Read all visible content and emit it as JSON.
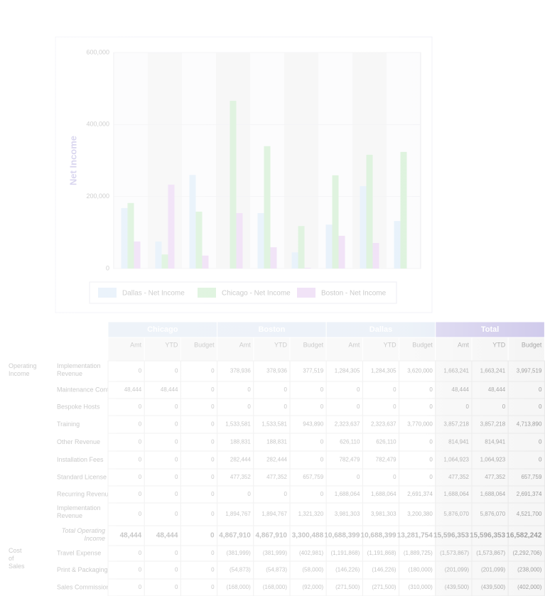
{
  "chart_data": {
    "type": "bar",
    "y_label": "Net Income",
    "categories": [
      null,
      null,
      null,
      null,
      null,
      null,
      null,
      null,
      null
    ],
    "series": [
      {
        "name": "Dallas - Net Income",
        "color": "#b9d7f2",
        "values": [
          168000,
          75000,
          260000,
          0,
          154000,
          45000,
          122000,
          229000,
          132000
        ]
      },
      {
        "name": "Chicago - Net Income",
        "color": "#9ad99a",
        "values": [
          182000,
          39000,
          158000,
          466000,
          340000,
          118000,
          259000,
          316000,
          324000
        ]
      },
      {
        "name": "Boston - Net Income",
        "color": "#d3a6e6",
        "values": [
          75000,
          233000,
          36000,
          154000,
          59000,
          2000,
          91000,
          71000,
          0
        ]
      }
    ],
    "ylim": [
      0,
      600000
    ],
    "yticks": [
      0,
      {
        "value": 200000,
        "label": "200,000"
      },
      {
        "value": 400000,
        "label": "400,000"
      },
      {
        "value": 600000,
        "label": "600,000"
      }
    ],
    "legend": "bottom"
  },
  "table": {
    "groups": [
      "Chicago",
      "Boston",
      "Dallas",
      "Total"
    ],
    "columns": [
      "Amt",
      "YTD",
      "Budget"
    ],
    "rows": [
      {
        "section": "Operating Income",
        "label": "Implementation Revenue",
        "values": [
          "0",
          "0",
          "0",
          "378,936",
          "378,936",
          "377,519",
          "1,284,305",
          "1,284,305",
          "3,620,000",
          "1,663,241",
          "1,663,241",
          "3,997,519"
        ]
      },
      {
        "label": "Maintenance Contracts",
        "values": [
          "48,444",
          "48,444",
          "0",
          "0",
          "0",
          "0",
          "0",
          "0",
          "0",
          "48,444",
          "48,444",
          "0"
        ]
      },
      {
        "label": "Bespoke Hosts",
        "values": [
          "0",
          "0",
          "0",
          "0",
          "0",
          "0",
          "0",
          "0",
          "0",
          "0",
          "0",
          "0"
        ]
      },
      {
        "label": "Training",
        "values": [
          "0",
          "0",
          "0",
          "1,533,581",
          "1,533,581",
          "943,890",
          "2,323,637",
          "2,323,637",
          "3,770,000",
          "3,857,218",
          "3,857,218",
          "4,713,890"
        ]
      },
      {
        "label": "Other Revenue",
        "values": [
          "0",
          "0",
          "0",
          "188,831",
          "188,831",
          "0",
          "626,110",
          "626,110",
          "0",
          "814,941",
          "814,941",
          "0"
        ]
      },
      {
        "label": "Installation Fees",
        "values": [
          "0",
          "0",
          "0",
          "282,444",
          "282,444",
          "0",
          "782,479",
          "782,479",
          "0",
          "1,064,923",
          "1,064,923",
          "0"
        ]
      },
      {
        "label": "Standard License",
        "values": [
          "0",
          "0",
          "0",
          "477,352",
          "477,352",
          "657,759",
          "0",
          "0",
          "0",
          "477,352",
          "477,352",
          "657,759"
        ]
      },
      {
        "label": "Recurring Revenue",
        "values": [
          "0",
          "0",
          "0",
          "0",
          "0",
          "0",
          "1,688,064",
          "1,688,064",
          "2,691,374",
          "1,688,064",
          "1,688,064",
          "2,691,374"
        ]
      },
      {
        "label": "Implementation Revenue",
        "values": [
          "0",
          "0",
          "0",
          "1,894,767",
          "1,894,767",
          "1,321,320",
          "3,981,303",
          "3,981,303",
          "3,200,380",
          "5,876,070",
          "5,876,070",
          "4,521,700"
        ]
      },
      {
        "label": "Total Operating Income",
        "values": [
          "48,444",
          "48,444",
          "0",
          "4,867,910",
          "4,867,910",
          "3,300,488",
          "10,688,399",
          "10,688,399",
          "13,281,754",
          "15,596,353",
          "15,596,353",
          "16,582,242"
        ]
      },
      {
        "section": "Cost of Sales",
        "label": "Travel Expense",
        "values": [
          "0",
          "0",
          "0",
          "(381,999)",
          "(381,999)",
          "(402,981)",
          "(1,191,868)",
          "(1,191,868)",
          "(1,889,725)",
          "(1,573,867)",
          "(1,573,867)",
          "(2,292,706)"
        ]
      },
      {
        "label": "Print & Packaging",
        "values": [
          "0",
          "0",
          "0",
          "(54,873)",
          "(54,873)",
          "(58,000)",
          "(146,226)",
          "(146,226)",
          "(180,000)",
          "(201,099)",
          "(201,099)",
          "(238,000)"
        ]
      },
      {
        "label": "Sales Commission",
        "values": [
          "0",
          "0",
          "0",
          "(168,000)",
          "(168,000)",
          "(92,000)",
          "(271,500)",
          "(271,500)",
          "(310,000)",
          "(439,500)",
          "(439,500)",
          "(402,000)"
        ]
      }
    ]
  }
}
